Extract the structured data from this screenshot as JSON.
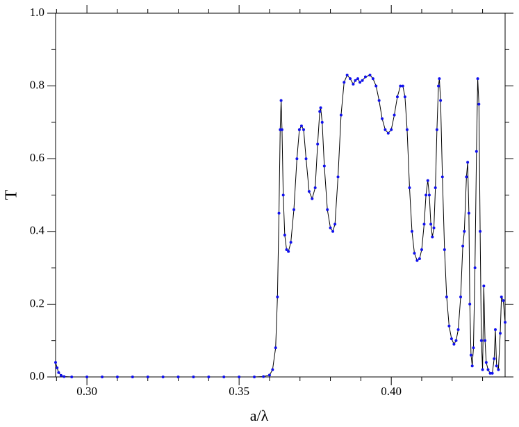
{
  "chart_data": {
    "type": "line",
    "xlabel": "a/λ",
    "ylabel": "T",
    "xlim": [
      0.2897,
      0.4374
    ],
    "ylim": [
      0,
      1
    ],
    "xticks": [
      {
        "value": 0.3,
        "label": "0.30"
      },
      0.35,
      {
        "value": 0.4,
        "label": "0.40"
      }
    ],
    "xminorticks": [
      0.29,
      0.31,
      0.32,
      0.33,
      0.34,
      0.36,
      0.37,
      0.38,
      0.39,
      0.41,
      0.42,
      0.43
    ],
    "yticks": [
      {
        "value": 0,
        "label": "0.0"
      },
      0.2,
      0.4,
      0.6,
      0.8,
      {
        "value": 1,
        "label": "1.0"
      }
    ],
    "yminorticks": [
      0.1,
      0.3,
      0.5,
      0.7,
      0.9
    ],
    "series": [
      {
        "line_color": "#000000",
        "color": "#1010ee",
        "x": [
          0.2897,
          0.2902,
          0.2907,
          0.2915,
          0.2925,
          0.295,
          0.3,
          0.305,
          0.31,
          0.315,
          0.32,
          0.325,
          0.33,
          0.335,
          0.34,
          0.345,
          0.35,
          0.355,
          0.358,
          0.36,
          0.361,
          0.362,
          0.3626,
          0.3631,
          0.3635,
          0.3638,
          0.3641,
          0.3645,
          0.365,
          0.3656,
          0.3662,
          0.367,
          0.368,
          0.369,
          0.3698,
          0.3705,
          0.3712,
          0.372,
          0.373,
          0.374,
          0.375,
          0.3758,
          0.3765,
          0.3768,
          0.3773,
          0.378,
          0.379,
          0.38,
          0.3808,
          0.3815,
          0.3825,
          0.3835,
          0.3845,
          0.3855,
          0.3865,
          0.3875,
          0.3882,
          0.389,
          0.3897,
          0.3905,
          0.3915,
          0.393,
          0.394,
          0.395,
          0.396,
          0.397,
          0.398,
          0.399,
          0.4,
          0.401,
          0.402,
          0.403,
          0.4038,
          0.4045,
          0.4052,
          0.406,
          0.4068,
          0.4076,
          0.4085,
          0.4093,
          0.41,
          0.4108,
          0.4114,
          0.412,
          0.4125,
          0.413,
          0.4135,
          0.414,
          0.4145,
          0.415,
          0.4155,
          0.4158,
          0.4162,
          0.4168,
          0.4175,
          0.4182,
          0.419,
          0.4198,
          0.4206,
          0.4213,
          0.422,
          0.4228,
          0.4235,
          0.424,
          0.4247,
          0.4251,
          0.4255,
          0.4258,
          0.4262,
          0.4266,
          0.427,
          0.4275,
          0.428,
          0.4284,
          0.4288,
          0.4292,
          0.4296,
          0.43,
          0.4304,
          0.4308,
          0.4312,
          0.4318,
          0.4325,
          0.4332,
          0.4338,
          0.4342,
          0.4346,
          0.4352,
          0.4358,
          0.4362,
          0.4368,
          0.4374
        ],
        "values": [
          0.04,
          0.025,
          0.012,
          0.004,
          0.001,
          0,
          0,
          0,
          0,
          0,
          0,
          0,
          0,
          0,
          0,
          0,
          0,
          0,
          0.001,
          0.005,
          0.02,
          0.08,
          0.22,
          0.45,
          0.68,
          0.76,
          0.68,
          0.5,
          0.39,
          0.35,
          0.345,
          0.37,
          0.46,
          0.6,
          0.68,
          0.69,
          0.68,
          0.6,
          0.51,
          0.49,
          0.52,
          0.64,
          0.73,
          0.74,
          0.7,
          0.58,
          0.46,
          0.41,
          0.4,
          0.42,
          0.55,
          0.72,
          0.81,
          0.83,
          0.82,
          0.805,
          0.815,
          0.82,
          0.81,
          0.815,
          0.825,
          0.83,
          0.82,
          0.8,
          0.76,
          0.71,
          0.68,
          0.67,
          0.68,
          0.72,
          0.77,
          0.8,
          0.8,
          0.77,
          0.68,
          0.52,
          0.4,
          0.34,
          0.32,
          0.325,
          0.35,
          0.42,
          0.5,
          0.54,
          0.5,
          0.42,
          0.385,
          0.41,
          0.52,
          0.68,
          0.8,
          0.82,
          0.76,
          0.55,
          0.35,
          0.22,
          0.14,
          0.105,
          0.09,
          0.1,
          0.13,
          0.22,
          0.36,
          0.4,
          0.55,
          0.59,
          0.45,
          0.2,
          0.06,
          0.03,
          0.08,
          0.3,
          0.62,
          0.82,
          0.75,
          0.4,
          0.1,
          0.02,
          0.25,
          0.1,
          0.04,
          0.02,
          0.01,
          0.01,
          0.05,
          0.13,
          0.03,
          0.02,
          0.12,
          0.22,
          0.21,
          0.15
        ]
      }
    ]
  }
}
